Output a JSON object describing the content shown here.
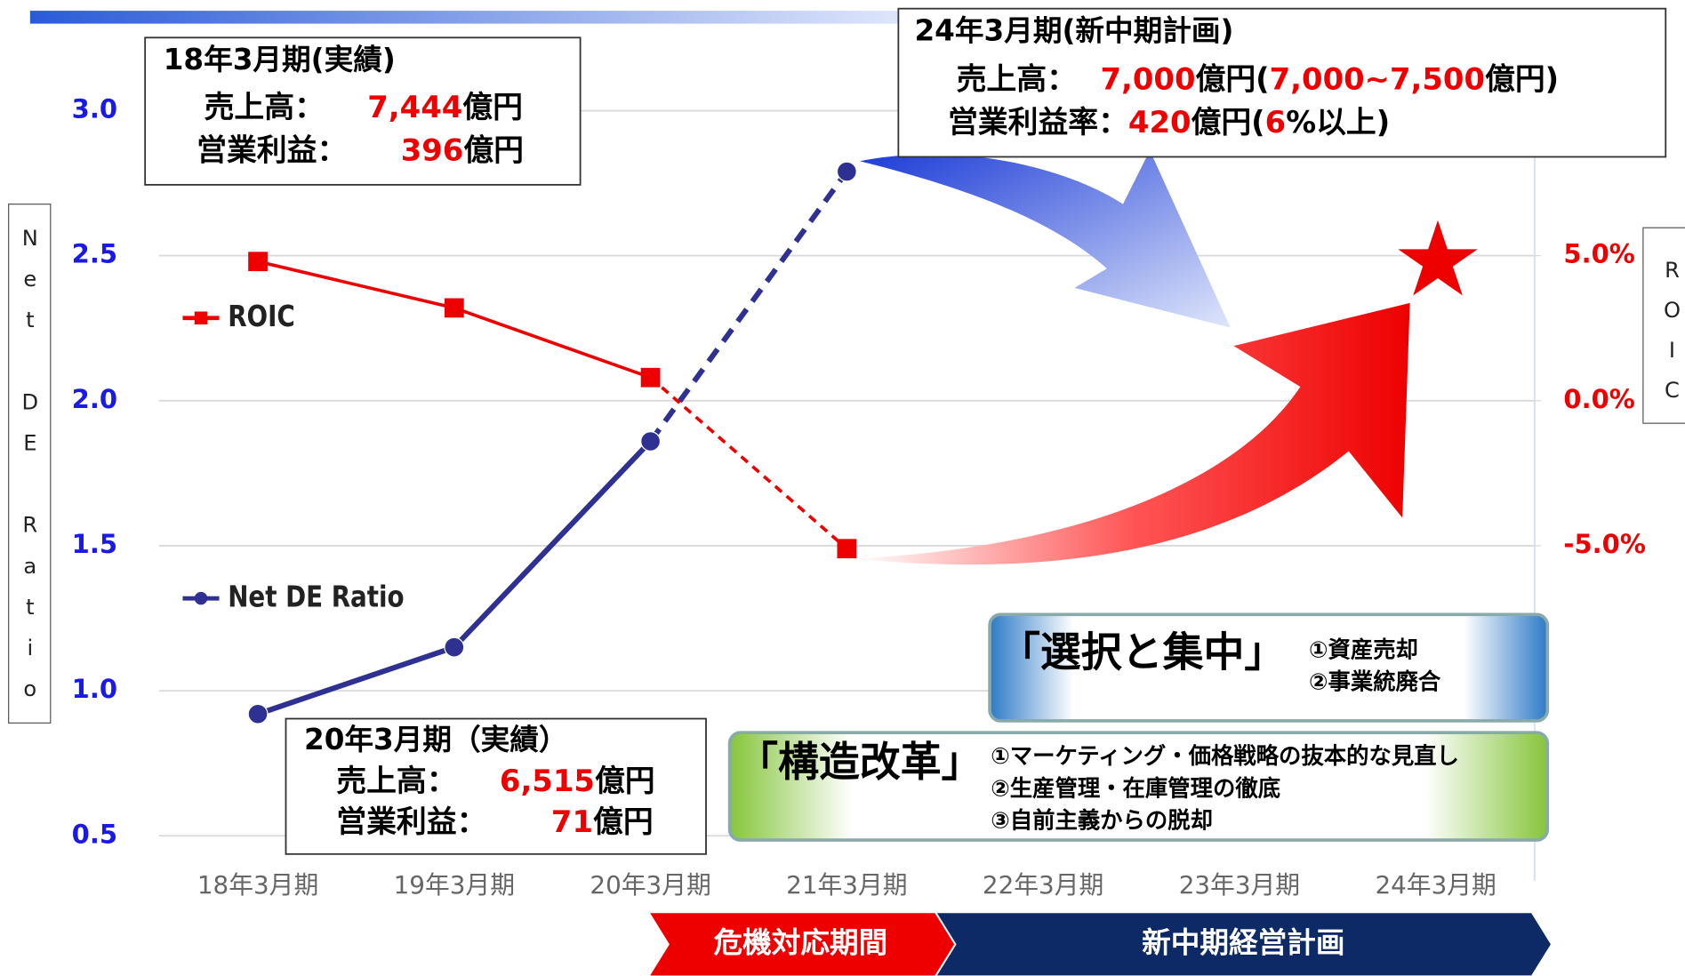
{
  "chart_data": {
    "type": "line",
    "categories": [
      "18年3月期",
      "19年3月期",
      "20年3月期",
      "21年3月期",
      "22年3月期",
      "23年3月期",
      "24年3月期"
    ],
    "series": [
      {
        "name": "Net DE Ratio",
        "color": "#2e3192",
        "marker": "circle",
        "dashed_from": 2,
        "values": [
          0.92,
          1.15,
          1.86,
          2.79,
          null,
          null,
          null
        ]
      },
      {
        "name": "ROIC",
        "color": "#ee0000",
        "marker": "square",
        "dashed_from": 2,
        "axis": "y2",
        "values": [
          4.8,
          3.2,
          0.8,
          -5.1,
          null,
          null,
          null
        ]
      }
    ],
    "ylim": [
      0.5,
      3.0
    ],
    "yticks": [
      0.5,
      {
        "value": 1,
        "label": "1.0"
      },
      1.5,
      {
        "value": 2,
        "label": "2.0"
      },
      2.5,
      {
        "value": 3,
        "label": "3.0"
      }
    ],
    "y2lim": [
      -15,
      10
    ],
    "y2ticks": [
      {
        "value": -5,
        "label": "-5.0%"
      },
      {
        "value": 0,
        "label": "0.0%"
      },
      {
        "value": 5,
        "label": "5.0%"
      }
    ],
    "ylabel": "Net DE Ratio",
    "y2label": "ROIC",
    "grid": true,
    "annotations": [
      {
        "title": "18年3月期(実績)",
        "lines": [
          [
            {
              "text": "売上高：",
              "color": "#000"
            },
            {
              "text": "7,444",
              "color": "#ee0000"
            },
            {
              "text": "億円",
              "color": "#000"
            }
          ],
          [
            {
              "text": "営業利益：",
              "color": "#000"
            },
            {
              "text": "396",
              "color": "#ee0000"
            },
            {
              "text": "億円",
              "color": "#000"
            }
          ]
        ]
      },
      {
        "title": "20年3月期（実績）",
        "lines": [
          [
            {
              "text": "売上高：",
              "color": "#000"
            },
            {
              "text": "6,515",
              "color": "#ee0000"
            },
            {
              "text": "億円",
              "color": "#000"
            }
          ],
          [
            {
              "text": "営業利益：",
              "color": "#000"
            },
            {
              "text": "71",
              "color": "#ee0000"
            },
            {
              "text": "億円",
              "color": "#000"
            }
          ]
        ]
      },
      {
        "title": "24年3月期(新中期計画)",
        "lines": [
          [
            {
              "text": "売上高：",
              "color": "#000"
            },
            {
              "text": "7,000",
              "color": "#ee0000"
            },
            {
              "text": "億円(",
              "color": "#000"
            },
            {
              "text": "7,000~7,500",
              "color": "#ee0000"
            },
            {
              "text": "億円)",
              "color": "#000"
            }
          ],
          [
            {
              "text": "営業利益率：",
              "color": "#000"
            },
            {
              "text": "420",
              "color": "#ee0000"
            },
            {
              "text": "億円(",
              "color": "#000"
            },
            {
              "text": "6",
              "color": "#ee0000"
            },
            {
              "text": "%以上)",
              "color": "#000"
            }
          ]
        ]
      }
    ],
    "panels": [
      {
        "title": "「選択と集中」",
        "items": [
          "①資産売却",
          "②事業統廃合"
        ]
      },
      {
        "title": "「構造改革」",
        "items": [
          "①マーケティング・価格戦略の抜本的な見直し",
          "②生産管理・在庫管理の徹底",
          "③自前主義からの脱却"
        ]
      }
    ],
    "phases": [
      "危機対応期間",
      "新中期経営計画"
    ]
  }
}
